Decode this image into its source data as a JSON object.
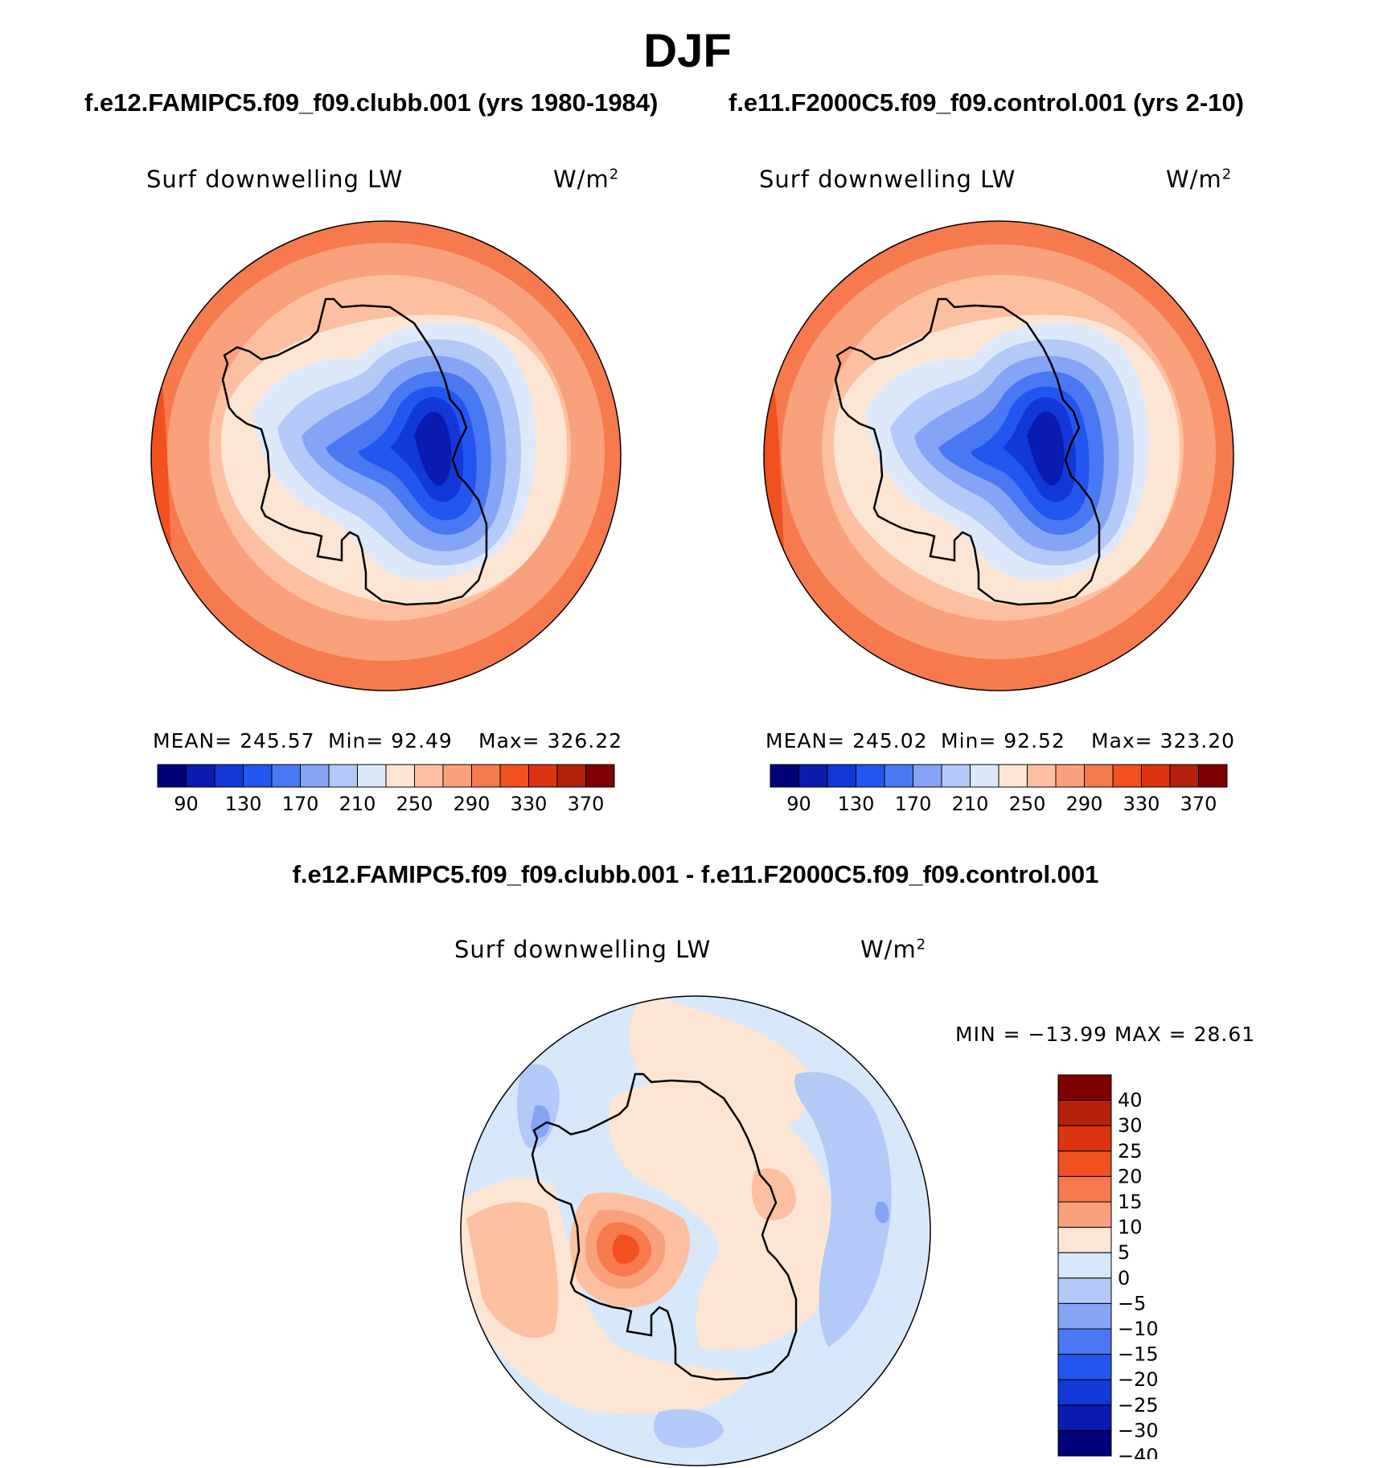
{
  "title": "DJF",
  "panels": [
    {
      "case": "f.e12.FAMIPC5.f09_f09.clubb.001 (yrs 1980-1984)",
      "variable": "Surf downwelling LW",
      "units": "W/m",
      "units_sup": "2",
      "stats": {
        "mean": "MEAN= 245.57",
        "min": "Min=   92.49",
        "max": "Max= 326.22"
      }
    },
    {
      "case": "f.e11.F2000C5.f09_f09.control.001 (yrs 2-10)",
      "variable": "Surf downwelling LW",
      "units": "W/m",
      "units_sup": "2",
      "stats": {
        "mean": "MEAN= 245.02",
        "min": "Min=   92.52",
        "max": "Max= 323.20"
      }
    }
  ],
  "diff_panel": {
    "case": "f.e12.FAMIPC5.f09_f09.clubb.001 - f.e11.F2000C5.f09_f09.control.001",
    "variable": "Surf downwelling LW",
    "units": "W/m",
    "units_sup": "2",
    "minmax": "MIN = −13.99 MAX =   28.61"
  },
  "chart_data": [
    {
      "type": "heatmap",
      "projection": "south-polar-stereographic",
      "title": "Surf downwelling LW",
      "units": "W/m2",
      "mean": 245.57,
      "min": 92.49,
      "max": 326.22,
      "colorbar_ticks": [
        "90",
        "130",
        "170",
        "210",
        "250",
        "290",
        "330",
        "370"
      ],
      "colorbar_colors": [
        "#00007a",
        "#0a1bb0",
        "#1238d8",
        "#2356ee",
        "#4a78f2",
        "#84a5f5",
        "#b3c9f8",
        "#dde9fb",
        "#fde5d3",
        "#fcc0a0",
        "#f9a07c",
        "#f67a4e",
        "#f1501f",
        "#dc3410",
        "#b5200b",
        "#7f0000"
      ],
      "field_levels": {
        "pole_region": 100,
        "interior": 140,
        "coast": 220,
        "inner_ocean": 250,
        "mid_ocean": 280,
        "outer_ocean": 310,
        "peak": 330
      }
    },
    {
      "type": "heatmap",
      "projection": "south-polar-stereographic",
      "title": "Surf downwelling LW",
      "units": "W/m2",
      "mean": 245.02,
      "min": 92.52,
      "max": 323.2,
      "colorbar_ticks": [
        "90",
        "130",
        "170",
        "210",
        "250",
        "290",
        "330",
        "370"
      ],
      "colorbar_colors": [
        "#00007a",
        "#0a1bb0",
        "#1238d8",
        "#2356ee",
        "#4a78f2",
        "#84a5f5",
        "#b3c9f8",
        "#dde9fb",
        "#fde5d3",
        "#fcc0a0",
        "#f9a07c",
        "#f67a4e",
        "#f1501f",
        "#dc3410",
        "#b5200b",
        "#7f0000"
      ],
      "field_levels": {
        "pole_region": 100,
        "interior": 140,
        "coast": 220,
        "inner_ocean": 250,
        "mid_ocean": 280,
        "outer_ocean": 310,
        "peak": 330
      }
    },
    {
      "type": "heatmap",
      "projection": "south-polar-stereographic",
      "title": "Surf downwelling LW",
      "units": "W/m2",
      "min": -13.99,
      "max": 28.61,
      "colorbar_ticks": [
        "40",
        "30",
        "25",
        "20",
        "15",
        "10",
        "5",
        "0",
        "−5",
        "−10",
        "−15",
        "−20",
        "−25",
        "−30",
        "−40"
      ],
      "colorbar_colors": [
        "#7f0000",
        "#b5200b",
        "#dc3410",
        "#f1501f",
        "#f67a4e",
        "#f9a07c",
        "#fde5d3",
        "#d8e8fb",
        "#b3c9f8",
        "#84a5f5",
        "#4a78f2",
        "#2356ee",
        "#1238d8",
        "#0a1bb0",
        "#00007a"
      ],
      "field_levels": {
        "background": -2,
        "antarctica": 2,
        "peninsula_hotspot": 22,
        "ocean_patches": -8
      }
    }
  ]
}
